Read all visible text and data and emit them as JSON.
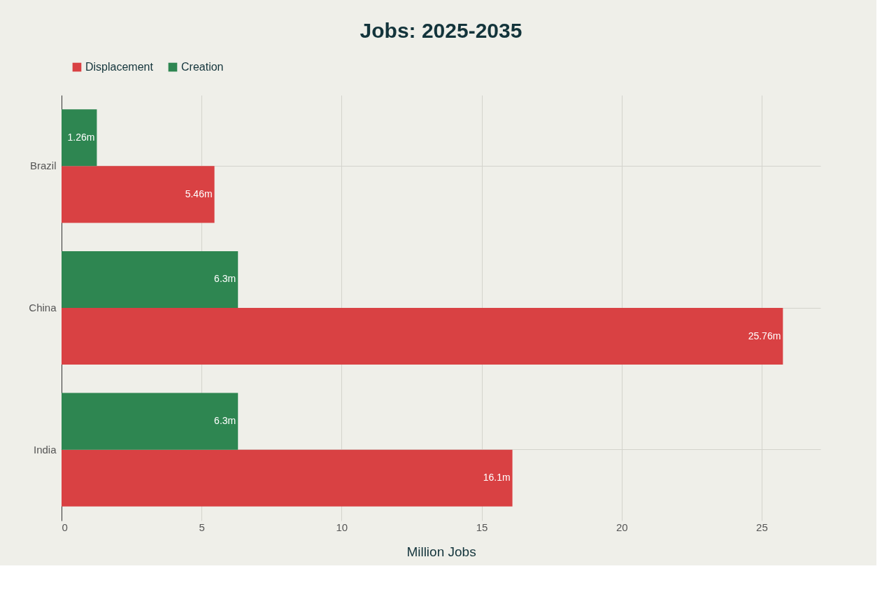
{
  "chart_data": {
    "type": "bar",
    "orientation": "horizontal",
    "title": "Jobs: 2025-2035",
    "xlabel": "Million Jobs",
    "categories": [
      "Brazil",
      "China",
      "India"
    ],
    "series": [
      {
        "name": "Displacement",
        "color": "#d94143",
        "values": [
          5.46,
          25.76,
          16.1
        ],
        "value_labels": [
          "5.46m",
          "25.76m",
          "16.1m"
        ]
      },
      {
        "name": "Creation",
        "color": "#2e8651",
        "values": [
          1.26,
          6.3,
          6.3
        ],
        "value_labels": [
          "1.26m",
          "6.3m",
          "6.3m"
        ]
      }
    ],
    "xlim": [
      0,
      27.1
    ],
    "xticks": [
      0,
      5,
      10,
      15,
      20,
      25
    ],
    "grid": true,
    "legend": "top"
  }
}
